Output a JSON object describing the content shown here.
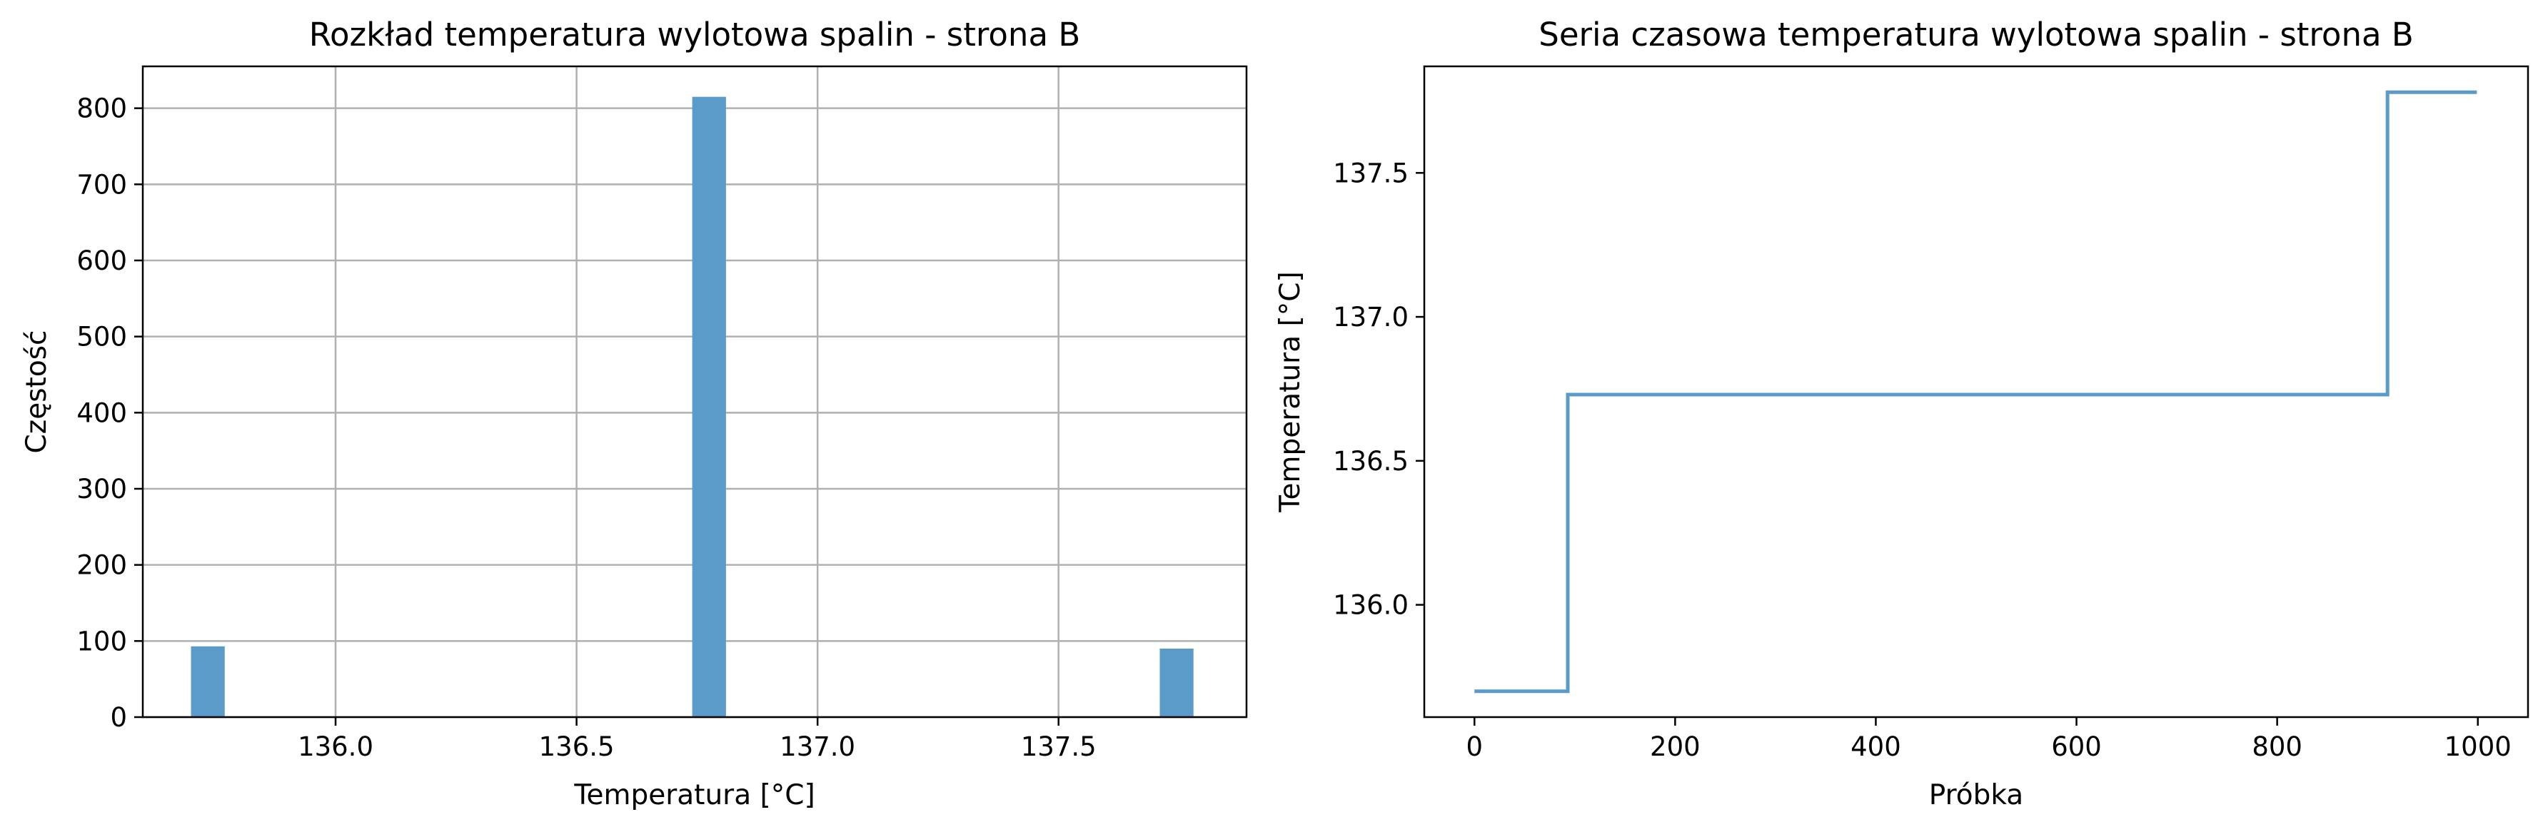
{
  "colors": {
    "bar": "#5b9bc9",
    "line": "#5b9bc9",
    "grid": "#b0b0b0",
    "axis": "#000000"
  },
  "chart_data": [
    {
      "type": "bar",
      "title": "Rozkład temperatura wylotowa spalin - strona B",
      "xlabel": "Temperatura [°C]",
      "ylabel": "Częstość",
      "xlim": [
        135.6,
        137.89
      ],
      "ylim": [
        0,
        855
      ],
      "xticks": [
        136.0,
        136.5,
        137.0,
        137.5
      ],
      "xtick_labels": [
        "136.0",
        "136.5",
        "137.0",
        "137.5"
      ],
      "yticks": [
        0,
        100,
        200,
        300,
        400,
        500,
        600,
        700,
        800
      ],
      "ytick_labels": [
        "0",
        "100",
        "200",
        "300",
        "400",
        "500",
        "600",
        "700",
        "800"
      ],
      "grid": true,
      "bins": [
        {
          "x0": 135.7,
          "x1": 135.77,
          "count": 93
        },
        {
          "x0": 136.74,
          "x1": 136.81,
          "count": 815
        },
        {
          "x0": 137.71,
          "x1": 137.78,
          "count": 90
        }
      ]
    },
    {
      "type": "line",
      "title": "Seria czasowa temperatura wylotowa spalin - strona B",
      "xlabel": "Próbka",
      "ylabel": "Temperatura [°C]",
      "xlim": [
        -50,
        1050
      ],
      "ylim": [
        135.61,
        137.87
      ],
      "xticks": [
        0,
        200,
        400,
        600,
        800,
        1000
      ],
      "xtick_labels": [
        "0",
        "200",
        "400",
        "600",
        "800",
        "1000"
      ],
      "yticks": [
        136.0,
        136.5,
        137.0,
        137.5
      ],
      "ytick_labels": [
        "136.0",
        "136.5",
        "137.0",
        "137.5"
      ],
      "grid": false,
      "x": [
        0,
        93,
        93,
        910,
        910,
        999
      ],
      "y": [
        135.7,
        135.7,
        136.73,
        136.73,
        137.78,
        137.78
      ]
    }
  ]
}
